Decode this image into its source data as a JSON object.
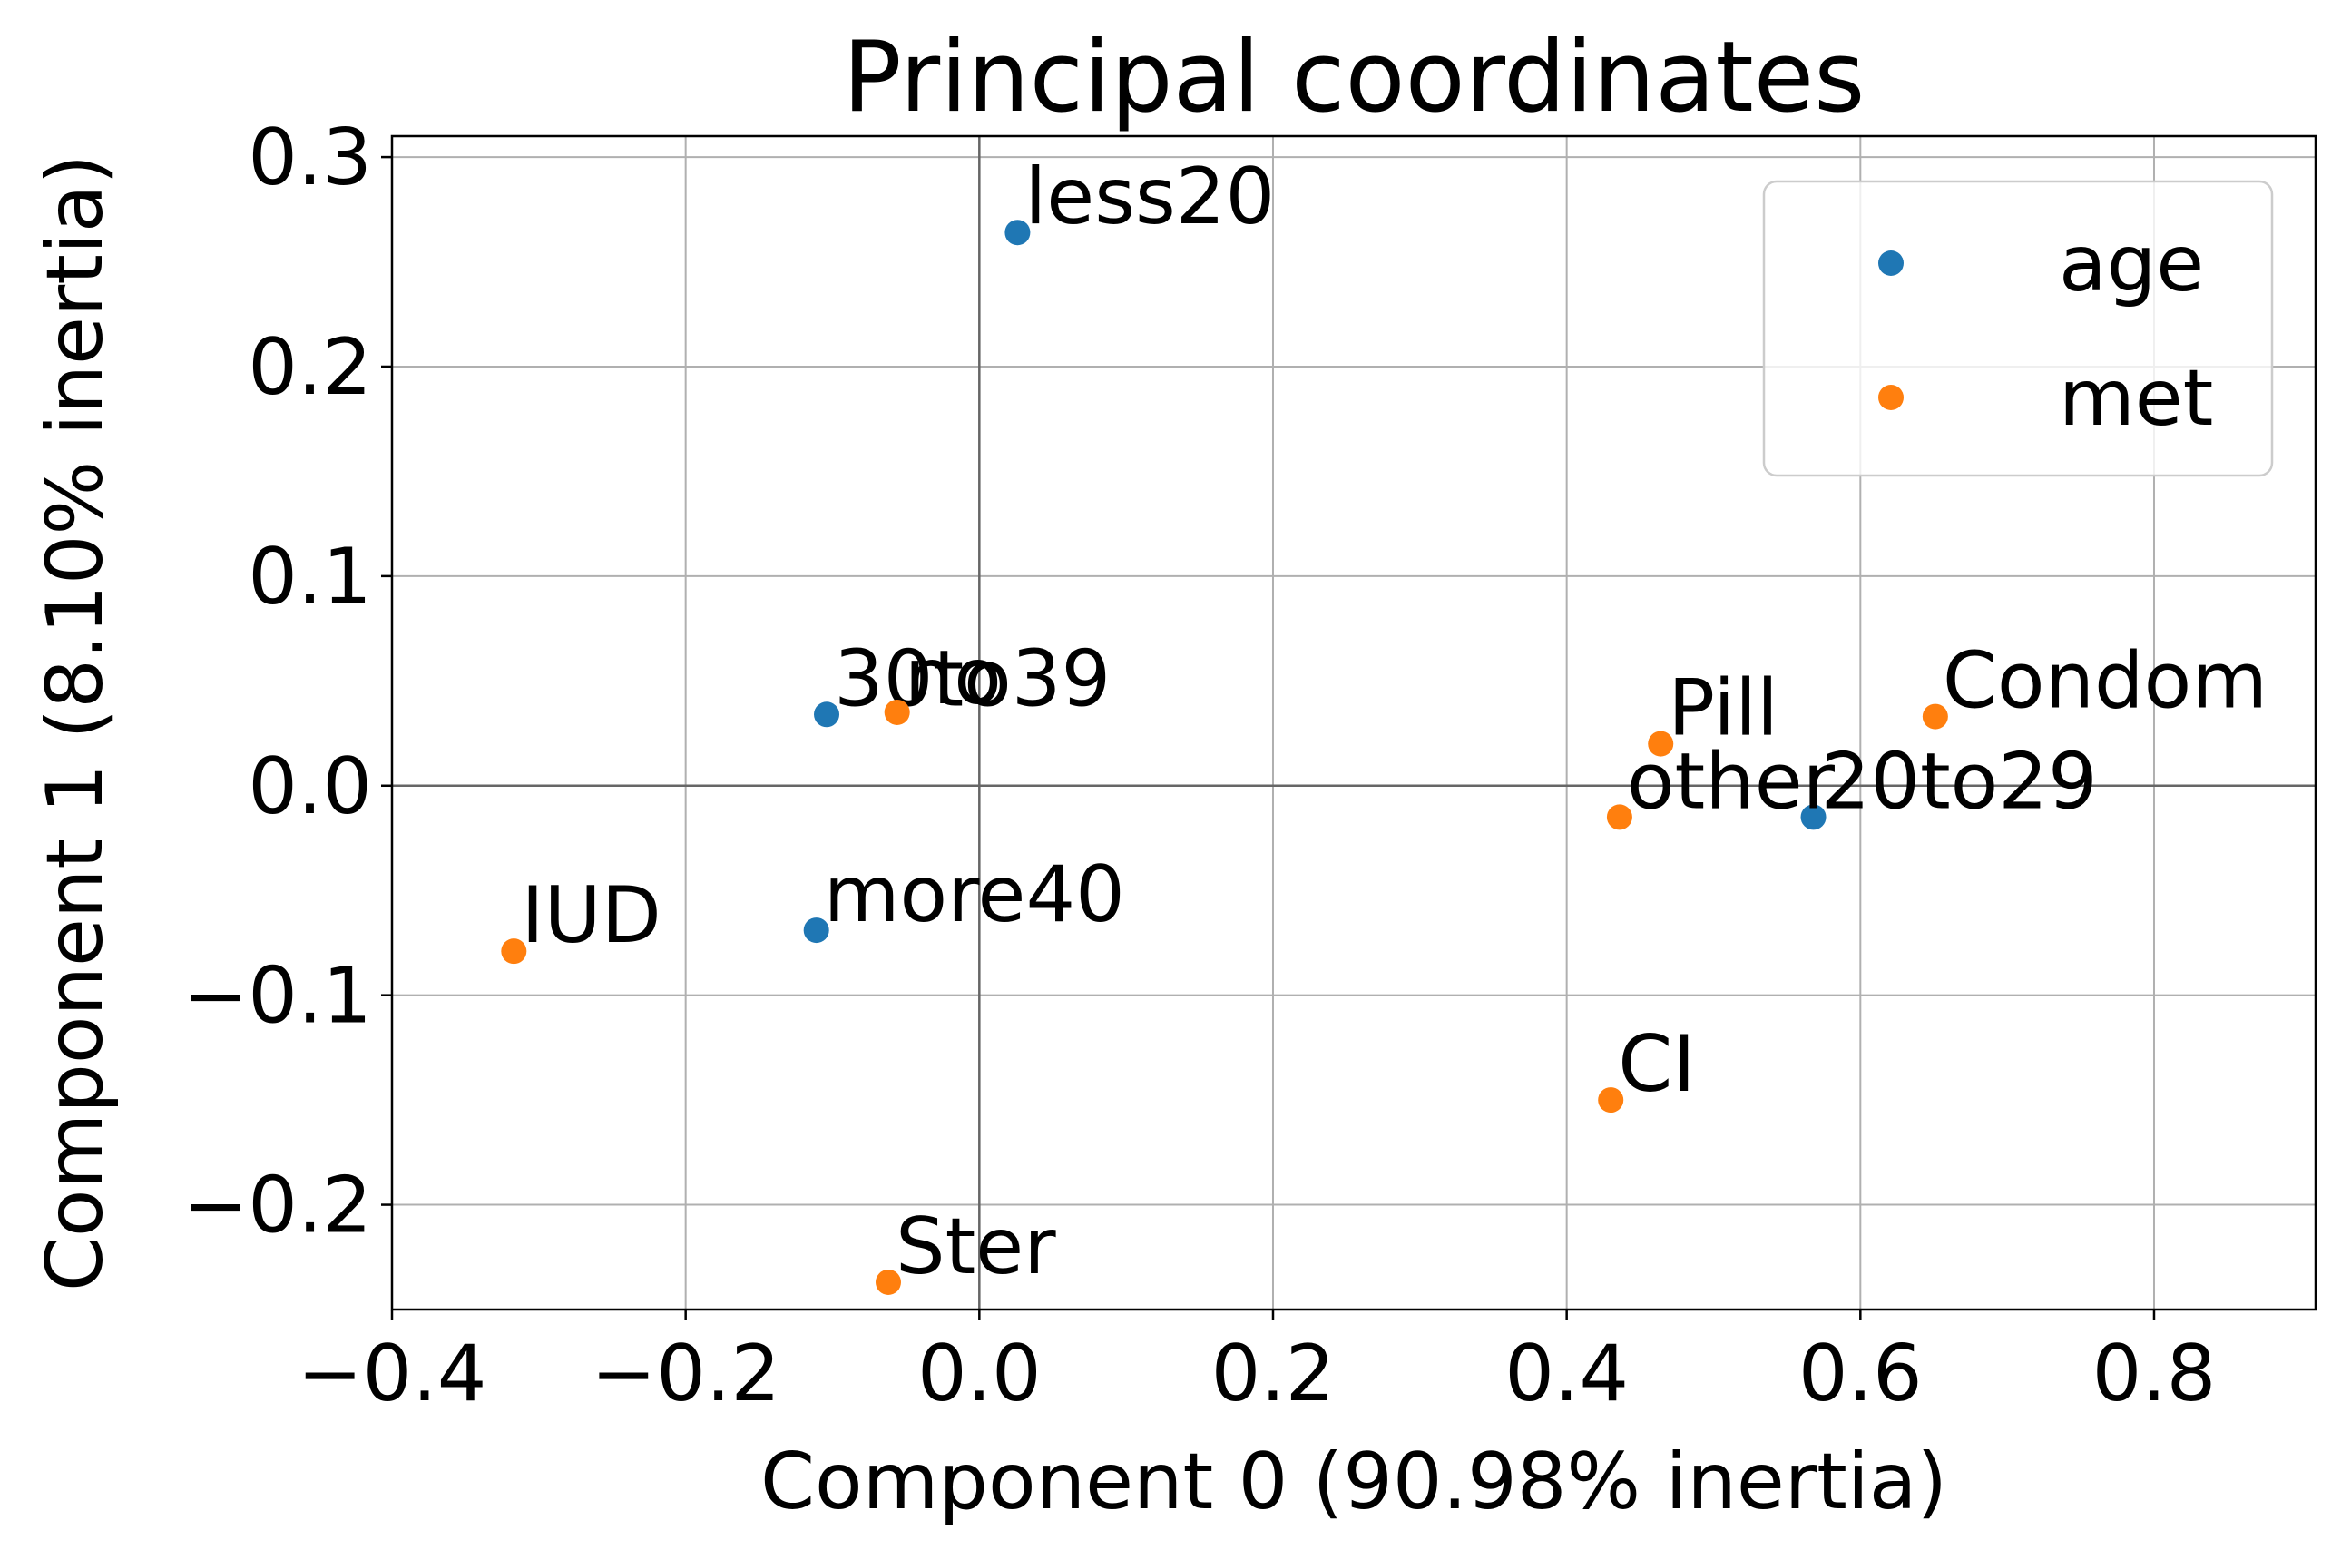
{
  "chart_data": {
    "type": "scatter",
    "title": "Principal coordinates",
    "xlabel": "Component 0 (90.98% inertia)",
    "ylabel": "Component 1 (8.10% inertia)",
    "xlim": [
      -0.4,
      0.91
    ],
    "ylim": [
      -0.25,
      0.31
    ],
    "xticks": [
      -0.4,
      -0.2,
      0.0,
      0.2,
      0.4,
      0.6,
      0.8
    ],
    "xtick_labels": [
      "−0.4",
      "−0.2",
      "0.0",
      "0.2",
      "0.4",
      "0.6",
      "0.8"
    ],
    "yticks": [
      -0.2,
      -0.1,
      0.0,
      0.1,
      0.2,
      0.3
    ],
    "ytick_labels": [
      "−0.2",
      "−0.1",
      "0.0",
      "0.1",
      "0.2",
      "0.3"
    ],
    "grid": true,
    "zero_lines": true,
    "legend_position": "top-right",
    "series": [
      {
        "name": "age",
        "color": "#1f77b4",
        "points": [
          {
            "label": "less20",
            "x": 0.026,
            "y": 0.264
          },
          {
            "label": "30to39",
            "x": -0.104,
            "y": 0.034
          },
          {
            "label": "20to29",
            "x": 0.568,
            "y": -0.015
          },
          {
            "label": "more40",
            "x": -0.111,
            "y": -0.069
          }
        ]
      },
      {
        "name": "met",
        "color": "#ff7f0e",
        "points": [
          {
            "label": "no",
            "x": -0.056,
            "y": 0.035
          },
          {
            "label": "Pill",
            "x": 0.464,
            "y": 0.02
          },
          {
            "label": "Condom",
            "x": 0.651,
            "y": 0.033
          },
          {
            "label": "other",
            "x": 0.436,
            "y": -0.015
          },
          {
            "label": "IUD",
            "x": -0.317,
            "y": -0.079
          },
          {
            "label": "CI",
            "x": 0.43,
            "y": -0.15
          },
          {
            "label": "Ster",
            "x": -0.062,
            "y": -0.237
          }
        ]
      }
    ]
  }
}
